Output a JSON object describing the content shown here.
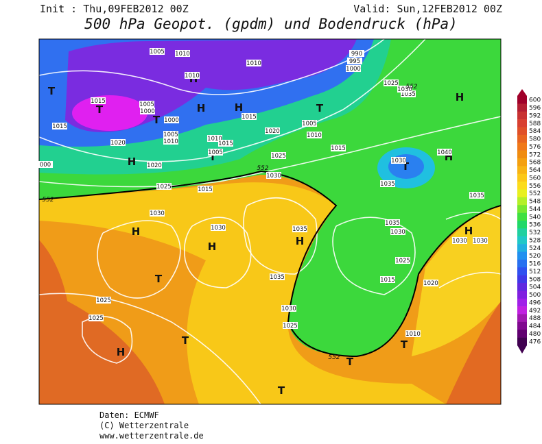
{
  "header": {
    "init": "Init : Thu,09FEB2012 00Z",
    "valid": "Valid: Sun,12FEB2012 00Z",
    "title": "500 hPa Geopot. (gpdm) und Bodendruck (hPa)"
  },
  "footer": [
    "Daten: ECMWF",
    "(C) Wetterzentrale",
    "www.wetterzentrale.de"
  ],
  "colorbar": [
    {
      "value": 600,
      "color": "#a0002a"
    },
    {
      "value": 596,
      "color": "#b41e32"
    },
    {
      "value": 592,
      "color": "#c83232"
    },
    {
      "value": 588,
      "color": "#d84030"
    },
    {
      "value": 584,
      "color": "#e05028"
    },
    {
      "value": 580,
      "color": "#e86420"
    },
    {
      "value": 576,
      "color": "#f07818"
    },
    {
      "value": 572,
      "color": "#f08c10"
    },
    {
      "value": 568,
      "color": "#f4a010"
    },
    {
      "value": 564,
      "color": "#f8b414"
    },
    {
      "value": 560,
      "color": "#fcc818"
    },
    {
      "value": 556,
      "color": "#fcdc1c"
    },
    {
      "value": 552,
      "color": "#e8f020"
    },
    {
      "value": 548,
      "color": "#b4f028"
    },
    {
      "value": 544,
      "color": "#78e830"
    },
    {
      "value": 540,
      "color": "#40e040"
    },
    {
      "value": 536,
      "color": "#20d868"
    },
    {
      "value": 532,
      "color": "#20d0a0"
    },
    {
      "value": 528,
      "color": "#20c8c8"
    },
    {
      "value": 524,
      "color": "#20b0e0"
    },
    {
      "value": 520,
      "color": "#2090f0"
    },
    {
      "value": 516,
      "color": "#2870f0"
    },
    {
      "value": 512,
      "color": "#3050f0"
    },
    {
      "value": 508,
      "color": "#4038e8"
    },
    {
      "value": 504,
      "color": "#6028e0"
    },
    {
      "value": 500,
      "color": "#8020e0"
    },
    {
      "value": 496,
      "color": "#a020e8"
    },
    {
      "value": 492,
      "color": "#c020e0"
    },
    {
      "value": 488,
      "color": "#a018b0"
    },
    {
      "value": 484,
      "color": "#800890"
    },
    {
      "value": 480,
      "color": "#600070"
    },
    {
      "value": 476,
      "color": "#400050"
    }
  ],
  "map": {
    "centers": [
      "T",
      "T",
      "T",
      "H",
      "H",
      "H",
      "T",
      "H",
      "T",
      "H",
      "H",
      "T",
      "H",
      "H",
      "H",
      "T",
      "H",
      "T",
      "H",
      "T",
      "T",
      "T"
    ],
    "isobar_labels": [
      "1005",
      "1010",
      "1010",
      "1010",
      "990",
      "995",
      "1000",
      "1015",
      "1005",
      "1000",
      "1000",
      "1015",
      "1005",
      "1010",
      "1020",
      "1015",
      "1010",
      "1015",
      "1005",
      "1020",
      "1005",
      "1010",
      "1015",
      "1025",
      "1020",
      "000",
      "1030",
      "1040",
      "1025",
      "1015",
      "1030",
      "1035",
      "1035",
      "1030",
      "1030",
      "1035",
      "1035",
      "1030",
      "1030",
      "1030",
      "1025",
      "1035",
      "1015",
      "1020",
      "1025",
      "1030",
      "1025",
      "1025",
      "1010",
      "1035",
      "1025",
      "1030"
    ],
    "contour_labels": [
      "552",
      "552",
      "552",
      "552"
    ]
  }
}
